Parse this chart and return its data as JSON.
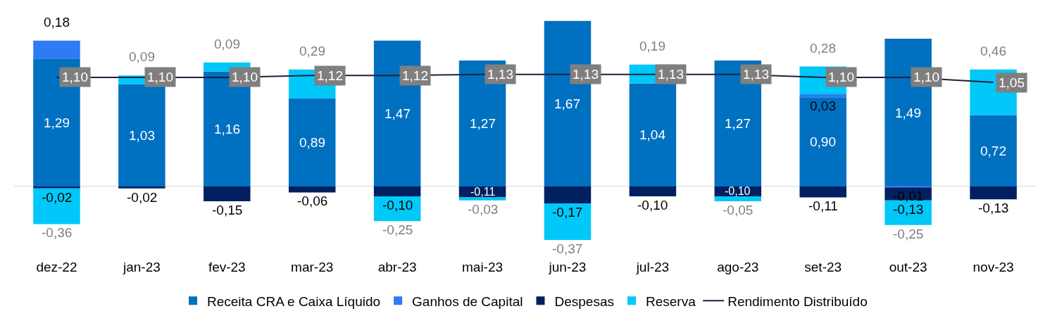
{
  "chart_data": {
    "type": "bar",
    "stacked": true,
    "legend": "bottom",
    "categories": [
      "dez-22",
      "jan-23",
      "fev-23",
      "mar-23",
      "abr-23",
      "mai-23",
      "jun-23",
      "jul-23",
      "ago-23",
      "set-23",
      "out-23",
      "nov-23"
    ],
    "series": [
      {
        "name": "Receita CRA e Caixa Líquido",
        "color": "#0070c0",
        "values": [
          1.29,
          1.03,
          1.16,
          0.89,
          1.47,
          1.27,
          1.67,
          1.04,
          1.27,
          0.9,
          1.49,
          0.72
        ],
        "value_labels": [
          "1,29",
          "1,03",
          "1,16",
          "0,89",
          "1,47",
          "1,27",
          "1,67",
          "1,04",
          "1,27",
          "0,90",
          "1,49",
          "0,72"
        ]
      },
      {
        "name": "Ganhos de Capital",
        "color": "#2f7bf5",
        "values": [
          0.18,
          0,
          0,
          0,
          0,
          0,
          0,
          0,
          0,
          0.03,
          -0.01,
          0
        ],
        "value_labels": [
          "0,18",
          null,
          null,
          null,
          null,
          null,
          null,
          null,
          null,
          "0,03",
          "-0,01",
          null
        ]
      },
      {
        "name": "Despesas",
        "color": "#002060",
        "values": [
          -0.02,
          -0.02,
          -0.15,
          -0.06,
          -0.1,
          -0.11,
          -0.17,
          -0.1,
          -0.1,
          -0.11,
          -0.13,
          -0.13
        ],
        "value_labels": [
          "-0,02",
          "-0,02",
          "-0,15",
          "-0,06",
          "-0,10",
          "-0,11",
          "-0,17",
          "-0,10",
          "-0,10",
          "-0,11",
          "-0,13",
          "-0,13"
        ]
      },
      {
        "name": "Reserva",
        "color": "#00c8f8",
        "values": [
          -0.36,
          0.09,
          0.09,
          0.29,
          -0.25,
          -0.03,
          -0.37,
          0.19,
          -0.05,
          0.28,
          -0.25,
          0.46
        ],
        "value_labels": [
          "-0,36",
          "0,09",
          "0,09",
          "0,29",
          "-0,25",
          "-0,03",
          "-0,37",
          "0,19",
          "-0,05",
          "0,28",
          "-0,25",
          "0,46"
        ]
      },
      {
        "name": "Rendimento Distribuído",
        "type": "line",
        "color": "#1f1f3a",
        "values": [
          1.1,
          1.1,
          1.1,
          1.12,
          1.12,
          1.13,
          1.13,
          1.13,
          1.13,
          1.1,
          1.1,
          1.05
        ],
        "value_labels": [
          "1,10",
          "1,10",
          "1,10",
          "1,12",
          "1,12",
          "1,13",
          "1,13",
          "1,13",
          "1,13",
          "1,10",
          "1,10",
          "1,05"
        ]
      }
    ]
  }
}
